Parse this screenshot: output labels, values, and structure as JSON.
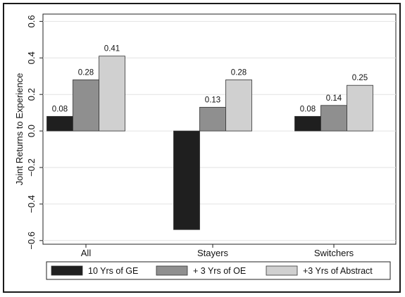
{
  "chart_data": {
    "type": "bar",
    "categories": [
      "All",
      "Stayers",
      "Switchers"
    ],
    "series": [
      {
        "name": "10 Yrs of GE",
        "values": [
          0.08,
          -0.54,
          0.08
        ],
        "labels": [
          "0.08",
          "",
          "0.08"
        ],
        "color": "#1f1f1f"
      },
      {
        "name": "+ 3 Yrs of OE",
        "values": [
          0.28,
          0.13,
          0.14
        ],
        "labels": [
          "0.28",
          "0.13",
          "0.14"
        ],
        "color": "#8f8f8f"
      },
      {
        "name": "+3 Yrs of Abstract",
        "values": [
          0.41,
          0.28,
          0.25
        ],
        "labels": [
          "0.41",
          "0.28",
          "0.25"
        ],
        "color": "#d0d0d0"
      }
    ],
    "title": "",
    "xlabel": "",
    "ylabel": "Joint Returns to Experience",
    "ylim": [
      -0.62,
      0.64
    ],
    "yticks": [
      -0.6,
      -0.4,
      -0.2,
      0.0,
      0.2,
      0.4,
      0.6
    ],
    "ytick_labels": [
      "−0.6",
      "−0.4",
      "−0.2",
      "0.0",
      "0.2",
      "0.4",
      "0.6"
    ],
    "grid": "horizontal",
    "legend_position": "bottom"
  }
}
